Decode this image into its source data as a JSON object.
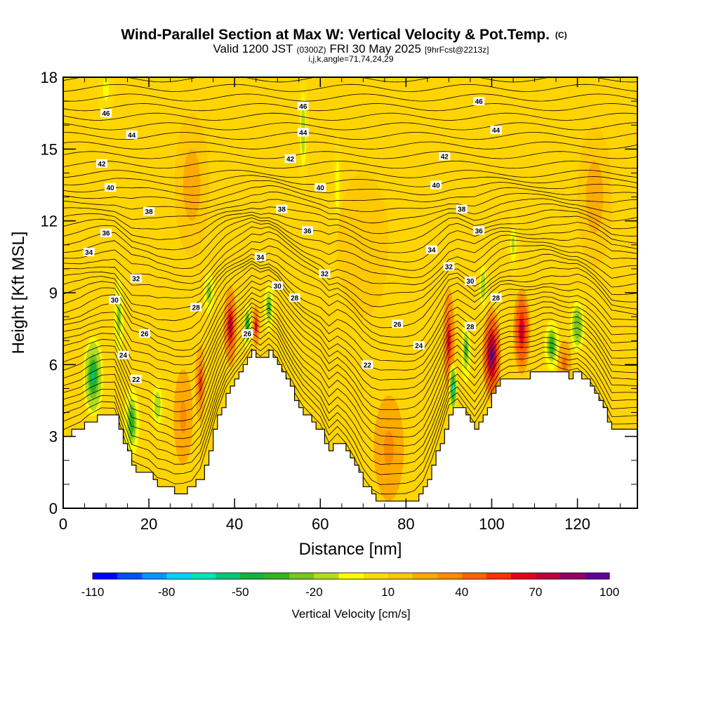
{
  "title": "Wind-Parallel Section at Max W: Vertical Velocity & Pot.Temp.",
  "copyright": "(C)",
  "subtitle_parts": [
    "Valid 1200 JST",
    "(0300Z)",
    "FRI 30 May 2025",
    "[9hrFcst@2213z]"
  ],
  "indices": "i,j,k,angle=71,74,24,29",
  "chart_data": {
    "type": "heatmap",
    "xlabel": "Distance [nm]",
    "ylabel": "Height [Kft MSL]",
    "xlim": [
      0,
      134
    ],
    "ylim": [
      0,
      18
    ],
    "x_ticks": [
      "0",
      "20",
      "40",
      "60",
      "80",
      "100",
      "120"
    ],
    "y_ticks": [
      "0",
      "3",
      "6",
      "9",
      "12",
      "15",
      "18"
    ],
    "colorbar": {
      "label": "Vertical Velocity [cm/s]",
      "tick_labels": [
        "-110",
        "-80",
        "-50",
        "-20",
        "10",
        "40",
        "70",
        "100"
      ],
      "colors": [
        "#0000ff",
        "#0050ff",
        "#0096ff",
        "#00d2ff",
        "#00e6b4",
        "#00c878",
        "#14b43c",
        "#32b41e",
        "#78c81e",
        "#b4dc1e",
        "#ffff00",
        "#ffdc00",
        "#ffc800",
        "#ffaa00",
        "#ff8c00",
        "#ff6400",
        "#ff3200",
        "#e6001e",
        "#be003c",
        "#960064",
        "#640096"
      ]
    },
    "terrain_kft": {
      "x": [
        0,
        4,
        6,
        9,
        12,
        14,
        16,
        20,
        22,
        24,
        26,
        28,
        30,
        32,
        34,
        36,
        38,
        40,
        42,
        44,
        46,
        48,
        50,
        52,
        54,
        56,
        58,
        60,
        62,
        64,
        66,
        68,
        70,
        72,
        74,
        76,
        78,
        80,
        82,
        84,
        86,
        88,
        90,
        92,
        94,
        96,
        98,
        100,
        102,
        104,
        106,
        108,
        110,
        112,
        114,
        116,
        118,
        120,
        122,
        124,
        126,
        128,
        130,
        134
      ],
      "y": [
        3.0,
        3.3,
        3.6,
        3.9,
        3.9,
        2.8,
        1.7,
        1.4,
        1.0,
        0.9,
        0.7,
        0.7,
        0.8,
        1.3,
        2.5,
        3.8,
        4.8,
        5.4,
        5.9,
        6.5,
        6.2,
        6.5,
        6.1,
        5.3,
        4.6,
        4.0,
        3.6,
        3.2,
        2.4,
        2.8,
        2.4,
        1.8,
        1.0,
        0.5,
        0.3,
        0.3,
        0.3,
        0.3,
        0.4,
        0.8,
        1.7,
        2.8,
        4.0,
        4.3,
        3.8,
        3.3,
        3.9,
        4.7,
        5.3,
        5.5,
        5.5,
        5.5,
        5.6,
        5.8,
        5.8,
        5.6,
        5.5,
        5.6,
        5.3,
        4.8,
        4.1,
        3.3,
        3.3,
        3.3
      ]
    },
    "potential_temperature_labels": [
      {
        "value": "22",
        "x": 17,
        "y": 5.4
      },
      {
        "value": "24",
        "x": 14,
        "y": 6.4
      },
      {
        "value": "26",
        "x": 19,
        "y": 7.3
      },
      {
        "value": "28",
        "x": 31,
        "y": 8.4
      },
      {
        "value": "30",
        "x": 12,
        "y": 8.7
      },
      {
        "value": "32",
        "x": 17,
        "y": 9.6
      },
      {
        "value": "34",
        "x": 6,
        "y": 10.7
      },
      {
        "value": "36",
        "x": 10,
        "y": 11.5
      },
      {
        "value": "38",
        "x": 20,
        "y": 12.4
      },
      {
        "value": "40",
        "x": 11,
        "y": 13.4
      },
      {
        "value": "42",
        "x": 9,
        "y": 14.4
      },
      {
        "value": "44",
        "x": 16,
        "y": 15.6
      },
      {
        "value": "46",
        "x": 10,
        "y": 16.5
      },
      {
        "value": "26",
        "x": 43,
        "y": 7.3
      },
      {
        "value": "28",
        "x": 54,
        "y": 8.8
      },
      {
        "value": "30",
        "x": 50,
        "y": 9.3
      },
      {
        "value": "32",
        "x": 61,
        "y": 9.8
      },
      {
        "value": "34",
        "x": 46,
        "y": 10.5
      },
      {
        "value": "36",
        "x": 57,
        "y": 11.6
      },
      {
        "value": "38",
        "x": 51,
        "y": 12.5
      },
      {
        "value": "40",
        "x": 60,
        "y": 13.4
      },
      {
        "value": "42",
        "x": 53,
        "y": 14.6
      },
      {
        "value": "44",
        "x": 56,
        "y": 15.7
      },
      {
        "value": "46",
        "x": 56,
        "y": 16.8
      },
      {
        "value": "22",
        "x": 71,
        "y": 6.0
      },
      {
        "value": "24",
        "x": 83,
        "y": 6.8
      },
      {
        "value": "26",
        "x": 78,
        "y": 7.7
      },
      {
        "value": "28",
        "x": 95,
        "y": 7.6
      },
      {
        "value": "28",
        "x": 101,
        "y": 8.8
      },
      {
        "value": "30",
        "x": 95,
        "y": 9.5
      },
      {
        "value": "32",
        "x": 90,
        "y": 10.1
      },
      {
        "value": "34",
        "x": 86,
        "y": 10.8
      },
      {
        "value": "36",
        "x": 97,
        "y": 11.6
      },
      {
        "value": "38",
        "x": 93,
        "y": 12.5
      },
      {
        "value": "40",
        "x": 87,
        "y": 13.5
      },
      {
        "value": "42",
        "x": 89,
        "y": 14.7
      },
      {
        "value": "44",
        "x": 101,
        "y": 15.8
      },
      {
        "value": "46",
        "x": 97,
        "y": 17.0
      }
    ],
    "velocity_features": [
      {
        "x": 7,
        "y": 5.5,
        "rx": 2.6,
        "ry": 1.9,
        "v": -60
      },
      {
        "x": 16,
        "y": 3.6,
        "rx": 2.0,
        "ry": 1.7,
        "v": -45
      },
      {
        "x": 22,
        "y": 4.3,
        "rx": 1.8,
        "ry": 1.4,
        "v": -25
      },
      {
        "x": 13,
        "y": 8.0,
        "rx": 1.3,
        "ry": 2.0,
        "v": -30
      },
      {
        "x": 39,
        "y": 7.6,
        "rx": 1.6,
        "ry": 1.7,
        "v": 65
      },
      {
        "x": 32,
        "y": 5.2,
        "rx": 1.2,
        "ry": 1.6,
        "v": 45
      },
      {
        "x": 34,
        "y": 9.0,
        "rx": 1.5,
        "ry": 1.1,
        "v": -30
      },
      {
        "x": 43,
        "y": 7.6,
        "rx": 1.0,
        "ry": 1.1,
        "v": -55
      },
      {
        "x": 45,
        "y": 7.6,
        "rx": 0.8,
        "ry": 0.9,
        "v": 55
      },
      {
        "x": 48,
        "y": 8.4,
        "rx": 1.3,
        "ry": 1.2,
        "v": -40
      },
      {
        "x": 56,
        "y": 15.8,
        "rx": 1.2,
        "ry": 2.6,
        "v": -25
      },
      {
        "x": 64,
        "y": 13.5,
        "rx": 0.9,
        "ry": 2.2,
        "v": -15
      },
      {
        "x": 90,
        "y": 7.0,
        "rx": 1.4,
        "ry": 2.2,
        "v": 55
      },
      {
        "x": 91,
        "y": 5.0,
        "rx": 1.0,
        "ry": 1.1,
        "v": -70
      },
      {
        "x": 94,
        "y": 6.6,
        "rx": 1.3,
        "ry": 1.6,
        "v": -40
      },
      {
        "x": 100,
        "y": 6.4,
        "rx": 2.2,
        "ry": 2.0,
        "v": 85
      },
      {
        "x": 107,
        "y": 7.4,
        "rx": 2.0,
        "ry": 1.8,
        "v": 70
      },
      {
        "x": 98,
        "y": 9.3,
        "rx": 1.4,
        "ry": 1.4,
        "v": -25
      },
      {
        "x": 114,
        "y": 6.8,
        "rx": 2.0,
        "ry": 1.2,
        "v": -45
      },
      {
        "x": 120,
        "y": 7.6,
        "rx": 2.4,
        "ry": 1.6,
        "v": -35
      },
      {
        "x": 117,
        "y": 6.0,
        "rx": 1.6,
        "ry": 1.0,
        "v": 35
      },
      {
        "x": 105,
        "y": 11.0,
        "rx": 1.4,
        "ry": 1.4,
        "v": -20
      },
      {
        "x": 76,
        "y": 2.5,
        "rx": 3.5,
        "ry": 2.2,
        "v": 25
      },
      {
        "x": 28,
        "y": 3.8,
        "rx": 2.2,
        "ry": 2.0,
        "v": 28
      },
      {
        "x": 10,
        "y": 17.5,
        "rx": 2.0,
        "ry": 1.5,
        "v": -12
      },
      {
        "x": 124,
        "y": 13.0,
        "rx": 4.0,
        "ry": 3.0,
        "v": 18
      },
      {
        "x": 30,
        "y": 13.5,
        "rx": 4.0,
        "ry": 3.0,
        "v": 16
      },
      {
        "x": 70,
        "y": 11.0,
        "rx": 6.0,
        "ry": 3.0,
        "v": 14
      }
    ]
  }
}
